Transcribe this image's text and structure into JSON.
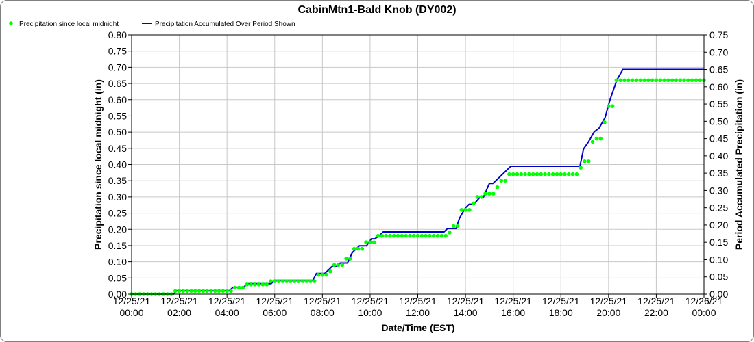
{
  "chart_data": {
    "type": "line",
    "title": "CabinMtn1-Bald Knob (DY002)",
    "xlabel": "Date/Time (EST)",
    "ylabel_left": "Precipitation since local midnight (in)",
    "ylabel_right": "Period Accumulated Precipitation (in)",
    "ylim_left": [
      0,
      0.8
    ],
    "ylim_right": [
      0,
      0.75
    ],
    "yticks_left": [
      "0.00",
      "0.05",
      "0.10",
      "0.15",
      "0.20",
      "0.25",
      "0.30",
      "0.35",
      "0.40",
      "0.45",
      "0.50",
      "0.55",
      "0.60",
      "0.65",
      "0.70",
      "0.75",
      "0.80"
    ],
    "yticks_right": [
      "0.00",
      "0.05",
      "0.10",
      "0.15",
      "0.20",
      "0.25",
      "0.30",
      "0.35",
      "0.40",
      "0.45",
      "0.50",
      "0.55",
      "0.60",
      "0.65",
      "0.70",
      "0.75"
    ],
    "xlim_hours": [
      0,
      24
    ],
    "xticks": [
      {
        "hour": 0,
        "date": "12/25/21",
        "time": "00:00"
      },
      {
        "hour": 2,
        "date": "12/25/21",
        "time": "02:00"
      },
      {
        "hour": 4,
        "date": "12/25/21",
        "time": "04:00"
      },
      {
        "hour": 6,
        "date": "12/25/21",
        "time": "06:00"
      },
      {
        "hour": 8,
        "date": "12/25/21",
        "time": "08:00"
      },
      {
        "hour": 10,
        "date": "12/25/21",
        "time": "10:00"
      },
      {
        "hour": 12,
        "date": "12/25/21",
        "time": "12:00"
      },
      {
        "hour": 14,
        "date": "12/25/21",
        "time": "14:00"
      },
      {
        "hour": 16,
        "date": "12/25/21",
        "time": "16:00"
      },
      {
        "hour": 18,
        "date": "12/25/21",
        "time": "18:00"
      },
      {
        "hour": 20,
        "date": "12/25/21",
        "time": "20:00"
      },
      {
        "hour": 22,
        "date": "12/25/21",
        "time": "22:00"
      },
      {
        "hour": 24,
        "date": "12/26/21",
        "time": "00:00"
      }
    ],
    "grid": true,
    "legend_position": "top-left",
    "series": [
      {
        "name": "Precipitation since local midnight",
        "axis": "left",
        "style": "points",
        "color": "#00ff00",
        "sample_interval_min": 10,
        "steps": [
          {
            "from_hour": 0.0,
            "value": 0.0
          },
          {
            "from_hour": 1.833,
            "value": 0.01
          },
          {
            "from_hour": 4.167,
            "value": 0.02
          },
          {
            "from_hour": 4.833,
            "value": 0.03
          },
          {
            "from_hour": 5.833,
            "value": 0.04
          },
          {
            "from_hour": 7.667,
            "value": 0.06
          },
          {
            "from_hour": 8.167,
            "value": 0.07
          },
          {
            "from_hour": 8.5,
            "value": 0.09
          },
          {
            "from_hour": 9.0,
            "value": 0.11
          },
          {
            "from_hour": 9.167,
            "value": 0.13
          },
          {
            "from_hour": 9.333,
            "value": 0.14
          },
          {
            "from_hour": 9.833,
            "value": 0.16
          },
          {
            "from_hour": 10.167,
            "value": 0.17
          },
          {
            "from_hour": 10.333,
            "value": 0.18
          },
          {
            "from_hour": 13.167,
            "value": 0.19
          },
          {
            "from_hour": 13.5,
            "value": 0.21
          },
          {
            "from_hour": 13.667,
            "value": 0.23
          },
          {
            "from_hour": 13.833,
            "value": 0.26
          },
          {
            "from_hour": 14.167,
            "value": 0.28
          },
          {
            "from_hour": 14.5,
            "value": 0.3
          },
          {
            "from_hour": 14.833,
            "value": 0.31
          },
          {
            "from_hour": 15.167,
            "value": 0.33
          },
          {
            "from_hour": 15.5,
            "value": 0.35
          },
          {
            "from_hour": 15.667,
            "value": 0.36
          },
          {
            "from_hour": 15.833,
            "value": 0.37
          },
          {
            "from_hour": 18.833,
            "value": 0.39
          },
          {
            "from_hour": 19.0,
            "value": 0.41
          },
          {
            "from_hour": 19.167,
            "value": 0.44
          },
          {
            "from_hour": 19.333,
            "value": 0.47
          },
          {
            "from_hour": 19.5,
            "value": 0.48
          },
          {
            "from_hour": 19.667,
            "value": 0.5
          },
          {
            "from_hour": 19.833,
            "value": 0.53
          },
          {
            "from_hour": 20.0,
            "value": 0.58
          },
          {
            "from_hour": 20.167,
            "value": 0.62
          },
          {
            "from_hour": 20.333,
            "value": 0.66
          }
        ],
        "end_hour": 24.0
      },
      {
        "name": "Precipitation Accumulated Over Period Shown",
        "axis": "right",
        "style": "line",
        "color": "#0000cc",
        "points": [
          [
            0.0,
            0.0
          ],
          [
            1.75,
            0.0
          ],
          [
            1.9,
            0.01
          ],
          [
            4.1,
            0.01
          ],
          [
            4.25,
            0.02
          ],
          [
            4.7,
            0.02
          ],
          [
            4.85,
            0.03
          ],
          [
            5.85,
            0.03
          ],
          [
            6.0,
            0.04
          ],
          [
            7.6,
            0.04
          ],
          [
            7.75,
            0.06
          ],
          [
            8.1,
            0.06
          ],
          [
            8.4,
            0.08
          ],
          [
            8.6,
            0.08
          ],
          [
            8.75,
            0.09
          ],
          [
            9.05,
            0.09
          ],
          [
            9.25,
            0.12
          ],
          [
            9.55,
            0.14
          ],
          [
            9.85,
            0.14
          ],
          [
            10.05,
            0.16
          ],
          [
            10.2,
            0.16
          ],
          [
            10.4,
            0.17
          ],
          [
            10.55,
            0.18
          ],
          [
            13.1,
            0.18
          ],
          [
            13.25,
            0.19
          ],
          [
            13.6,
            0.19
          ],
          [
            13.75,
            0.22
          ],
          [
            14.0,
            0.25
          ],
          [
            14.15,
            0.26
          ],
          [
            14.35,
            0.26
          ],
          [
            14.6,
            0.28
          ],
          [
            14.75,
            0.28
          ],
          [
            15.0,
            0.32
          ],
          [
            15.15,
            0.32
          ],
          [
            15.9,
            0.37
          ],
          [
            18.8,
            0.37
          ],
          [
            18.95,
            0.42
          ],
          [
            19.15,
            0.44
          ],
          [
            19.4,
            0.47
          ],
          [
            19.6,
            0.48
          ],
          [
            19.85,
            0.51
          ],
          [
            20.05,
            0.56
          ],
          [
            20.35,
            0.62
          ],
          [
            20.6,
            0.65
          ],
          [
            24.0,
            0.65
          ]
        ]
      }
    ]
  }
}
